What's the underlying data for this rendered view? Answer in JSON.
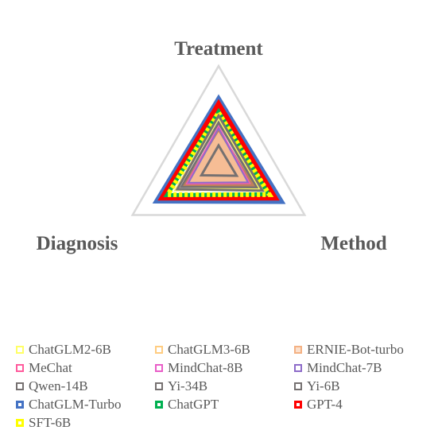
{
  "chart_data": {
    "type": "radar",
    "axes": [
      "Treatment",
      "Method",
      "Diagnosis"
    ],
    "range": [
      0,
      10
    ],
    "grid": true,
    "legend_position": "bottom",
    "series": [
      {
        "name": "ChatGLM2-6B",
        "color": "#ffff66",
        "values": [
          4.8,
          4.6,
          4.9
        ]
      },
      {
        "name": "ChatGLM3-6B",
        "color": "#ffcc80",
        "values": [
          4.9,
          4.7,
          5.0
        ]
      },
      {
        "name": "ERNIE-Bot-turbo",
        "color": "#f4b183",
        "values": [
          3.6,
          4.0,
          3.9
        ]
      },
      {
        "name": "MeChat",
        "color": "#ff5b9d",
        "values": [
          3.8,
          3.5,
          3.6
        ]
      },
      {
        "name": "MindChat-8B",
        "color": "#e95ec8",
        "values": [
          3.9,
          3.6,
          3.7
        ]
      },
      {
        "name": "MindChat-7B",
        "color": "#8e6cc9",
        "values": [
          3.7,
          3.4,
          3.5
        ]
      },
      {
        "name": "Qwen-14B",
        "color": "#767171",
        "values": [
          5.0,
          5.1,
          4.8
        ]
      },
      {
        "name": "Yi-34B",
        "color": "#767171",
        "values": [
          4.3,
          4.4,
          4.3
        ]
      },
      {
        "name": "Yi-6B",
        "color": "#767171",
        "values": [
          2.0,
          2.1,
          2.0
        ]
      },
      {
        "name": "ChatGLM-Turbo",
        "color": "#4472c4",
        "values": [
          6.7,
          7.3,
          7.2
        ]
      },
      {
        "name": "ChatGPT",
        "color": "#00b050",
        "values": [
          5.4,
          5.8,
          6.0
        ]
      },
      {
        "name": "GPT-4",
        "color": "#ff0000",
        "values": [
          6.2,
          6.6,
          6.6
        ]
      },
      {
        "name": "SFT-6B",
        "color": "#ffff00",
        "values": [
          5.3,
          5.9,
          5.9
        ]
      }
    ]
  }
}
